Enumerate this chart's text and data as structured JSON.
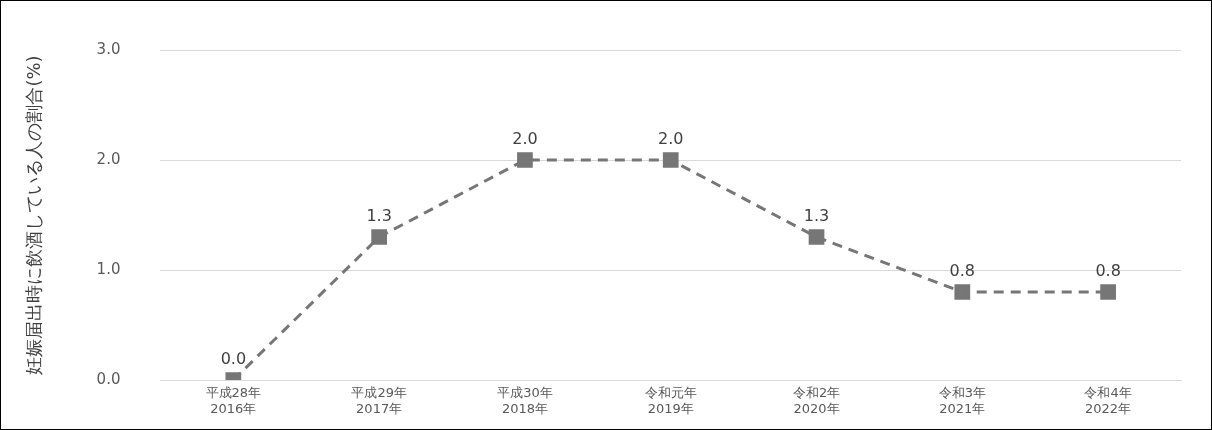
{
  "chart_data": {
    "type": "line",
    "ylabel": "妊娠届出時に飲酒している人の割合(%)",
    "categories": [
      "平成28年\n2016年",
      "平成29年\n2017年",
      "平成30年\n2018年",
      "令和元年\n2019年",
      "令和2年\n2020年",
      "令和3年\n2021年",
      "令和4年\n2022年"
    ],
    "series": [
      {
        "color": "#767676",
        "values": [
          0.0,
          1.3,
          2.0,
          2.0,
          1.3,
          0.8,
          0.8
        ],
        "value_labels": [
          "0.0",
          "1.3",
          "2.0",
          "2.0",
          "1.3",
          "0.8",
          "0.8"
        ]
      }
    ],
    "ylim": [
      0,
      3
    ],
    "yticks": [
      {
        "value": 0,
        "label": "0.0"
      },
      {
        "value": 1,
        "label": "1.0"
      },
      {
        "value": 2,
        "label": "2.0"
      },
      {
        "value": 3,
        "label": "3.0"
      }
    ],
    "grid": "y",
    "legend": false,
    "marker": "square",
    "line_style": "dashed"
  }
}
